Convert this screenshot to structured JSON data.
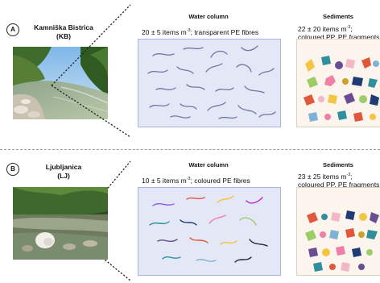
{
  "panels": [
    {
      "badge": "A",
      "site_name": "Kamniška Bistrica",
      "site_code": "(KB)",
      "water": {
        "heading": "Water column",
        "count": "20 ± 5 items m",
        "exp": "-3",
        "desc": "; transparent PE fibres"
      },
      "sediment": {
        "heading": "Sediments",
        "count": "22 ± 20 items m",
        "exp": "-3",
        "desc": ";",
        "desc2": "coloured PP, PE fragments"
      }
    },
    {
      "badge": "B",
      "site_name": "Ljubljanica",
      "site_code": "(LJ)",
      "water": {
        "heading": "Water column",
        "count": "10 ± 5 items m",
        "exp": "-3",
        "desc": "; coloured PE fibres"
      },
      "sediment": {
        "heading": "Sediments",
        "count": "23 ± 25 items m",
        "exp": "-3",
        "desc": ";",
        "desc2": "coloured PP, PE fragments"
      }
    }
  ],
  "colors": {
    "water_panel": "#e3e7f6",
    "sediment_panel": "#fbf5ee",
    "fibre_transparent": "#6f77a6",
    "fragment_palette": [
      "#e0573c",
      "#f2b8c6",
      "#2f8f9d",
      "#f4c542",
      "#6a4c93",
      "#7fb3d5",
      "#9ccc65",
      "#ef7fa6",
      "#c9a227",
      "#1f3b73"
    ]
  }
}
